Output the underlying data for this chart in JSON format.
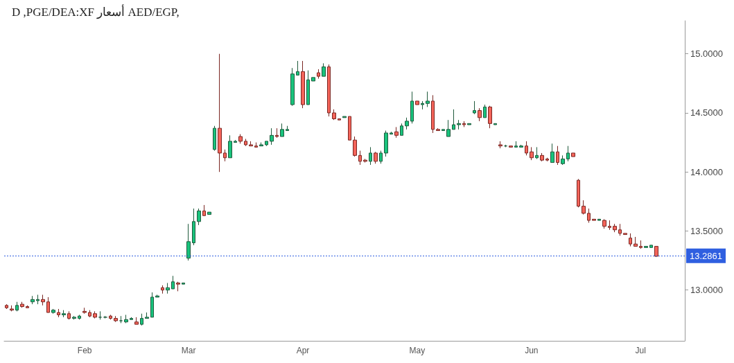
{
  "chart_data": {
    "type": "candlestick",
    "title": "D ,PGE/DEA:XF أسعار AED/EGP,",
    "categories": [
      null,
      null,
      null,
      null,
      null,
      null,
      null,
      null,
      null,
      null,
      null,
      null,
      null,
      null,
      null,
      "Feb",
      null,
      null,
      null,
      null,
      null,
      null,
      null,
      null,
      null,
      null,
      null,
      null,
      null,
      null,
      null,
      null,
      null,
      null,
      null,
      "Mar",
      null,
      null,
      null,
      null,
      null,
      null,
      null,
      null,
      null,
      null,
      null,
      null,
      null,
      null,
      null,
      null,
      null,
      null,
      null,
      null,
      null,
      "Apr",
      null,
      null,
      null,
      null,
      null,
      null,
      null,
      null,
      null,
      null,
      null,
      null,
      null,
      null,
      null,
      null,
      null,
      null,
      null,
      null,
      null,
      "May",
      null,
      null,
      null,
      null,
      null,
      null,
      null,
      null,
      null,
      null,
      null,
      null,
      null,
      null,
      null,
      null,
      null,
      null,
      null,
      null,
      null,
      "Jun",
      null,
      null,
      null,
      null,
      null,
      null,
      null,
      null,
      null,
      null,
      null,
      null,
      null,
      null,
      null,
      null,
      null,
      null,
      null,
      null,
      "Jul",
      null,
      null,
      null
    ],
    "ohlc": [
      [
        12.87,
        12.88,
        12.84,
        12.85
      ],
      [
        12.84,
        12.87,
        12.82,
        12.83
      ],
      [
        12.83,
        12.9,
        12.82,
        12.87
      ],
      [
        12.88,
        12.9,
        12.85,
        12.86
      ],
      [
        12.86,
        12.87,
        12.85,
        12.85
      ],
      [
        12.9,
        12.95,
        12.88,
        12.92
      ],
      [
        12.91,
        12.96,
        12.88,
        12.92
      ],
      [
        12.92,
        12.96,
        12.87,
        12.9
      ],
      [
        12.9,
        12.94,
        12.81,
        12.81
      ],
      [
        12.81,
        12.84,
        12.8,
        12.83
      ],
      [
        12.81,
        12.84,
        12.77,
        12.79
      ],
      [
        12.79,
        12.83,
        12.77,
        12.8
      ],
      [
        12.8,
        12.82,
        12.75,
        12.76
      ],
      [
        12.76,
        12.78,
        12.75,
        12.77
      ],
      [
        12.76,
        12.79,
        12.75,
        12.78
      ],
      [
        12.82,
        12.85,
        12.8,
        12.81
      ],
      [
        12.81,
        12.83,
        12.77,
        12.78
      ],
      [
        12.8,
        12.82,
        12.76,
        12.77
      ],
      [
        12.77,
        12.82,
        12.75,
        12.77
      ],
      [
        12.77,
        12.78,
        12.76,
        12.77
      ],
      [
        12.78,
        12.79,
        12.75,
        12.76
      ],
      [
        12.76,
        12.78,
        12.73,
        12.74
      ],
      [
        12.74,
        12.78,
        12.72,
        12.74
      ],
      [
        12.73,
        12.79,
        12.72,
        12.75
      ],
      [
        12.75,
        12.77,
        12.75,
        12.76
      ],
      [
        12.73,
        12.77,
        12.71,
        12.71
      ],
      [
        12.71,
        12.8,
        12.7,
        12.76
      ],
      [
        12.76,
        12.81,
        12.76,
        12.77
      ],
      [
        12.77,
        12.98,
        12.77,
        12.94
      ],
      [
        12.94,
        12.96,
        12.94,
        12.95
      ],
      [
        13.02,
        13.04,
        12.97,
        13.0
      ],
      [
        13.0,
        13.06,
        12.97,
        13.02
      ],
      [
        13.01,
        13.12,
        13.01,
        13.07
      ],
      [
        13.06,
        13.07,
        12.99,
        13.05
      ],
      [
        13.05,
        13.06,
        13.05,
        13.06
      ],
      [
        13.27,
        13.56,
        13.25,
        13.41
      ],
      [
        13.4,
        13.69,
        13.38,
        13.58
      ],
      [
        13.58,
        13.69,
        13.55,
        13.67
      ],
      [
        13.67,
        13.72,
        13.63,
        13.63
      ],
      [
        13.64,
        13.66,
        13.64,
        13.66
      ],
      [
        14.19,
        14.39,
        14.18,
        14.37
      ],
      [
        14.37,
        15.0,
        14.0,
        14.16
      ],
      [
        14.16,
        14.19,
        14.09,
        14.12
      ],
      [
        14.12,
        14.31,
        14.12,
        14.26
      ],
      [
        14.25,
        14.27,
        14.25,
        14.26
      ],
      [
        14.3,
        14.32,
        14.24,
        14.26
      ],
      [
        14.26,
        14.28,
        14.22,
        14.23
      ],
      [
        14.23,
        14.26,
        14.22,
        14.22
      ],
      [
        14.22,
        14.25,
        14.21,
        14.21
      ],
      [
        14.22,
        14.25,
        14.22,
        14.23
      ],
      [
        14.23,
        14.26,
        14.22,
        14.26
      ],
      [
        14.26,
        14.37,
        14.23,
        14.31
      ],
      [
        14.31,
        14.37,
        14.29,
        14.3
      ],
      [
        14.3,
        14.41,
        14.3,
        14.36
      ],
      [
        14.35,
        14.39,
        14.35,
        14.36
      ],
      [
        14.57,
        14.88,
        14.56,
        14.83
      ],
      [
        14.82,
        14.94,
        14.82,
        14.85
      ],
      [
        14.85,
        14.94,
        14.54,
        14.57
      ],
      [
        14.57,
        14.86,
        14.57,
        14.78
      ],
      [
        14.77,
        14.8,
        14.77,
        14.8
      ],
      [
        14.84,
        14.87,
        14.79,
        14.81
      ],
      [
        14.81,
        14.92,
        14.81,
        14.89
      ],
      [
        14.89,
        14.91,
        14.47,
        14.5
      ],
      [
        14.5,
        14.53,
        14.44,
        14.45
      ],
      [
        14.45,
        14.45,
        14.44,
        14.44
      ],
      [
        14.46,
        14.47,
        14.46,
        14.47
      ],
      [
        14.47,
        14.47,
        14.27,
        14.27
      ],
      [
        14.27,
        14.3,
        14.13,
        14.14
      ],
      [
        14.14,
        14.18,
        14.06,
        14.09
      ],
      [
        14.1,
        14.11,
        14.08,
        14.09
      ],
      [
        14.09,
        14.21,
        14.06,
        14.16
      ],
      [
        14.16,
        14.17,
        14.07,
        14.09
      ],
      [
        14.09,
        14.18,
        14.07,
        14.16
      ],
      [
        14.16,
        14.35,
        14.13,
        14.33
      ],
      [
        14.32,
        14.34,
        14.32,
        14.33
      ],
      [
        14.34,
        14.38,
        14.29,
        14.31
      ],
      [
        14.31,
        14.41,
        14.31,
        14.39
      ],
      [
        14.39,
        14.46,
        14.36,
        14.43
      ],
      [
        14.43,
        14.68,
        14.41,
        14.6
      ],
      [
        14.6,
        14.6,
        14.57,
        14.57
      ],
      [
        14.57,
        14.6,
        14.53,
        14.58
      ],
      [
        14.58,
        14.68,
        14.55,
        14.6
      ],
      [
        14.6,
        14.65,
        14.33,
        14.36
      ],
      [
        14.36,
        14.37,
        14.35,
        14.35
      ],
      [
        14.35,
        14.36,
        14.35,
        14.36
      ],
      [
        14.3,
        14.44,
        14.3,
        14.36
      ],
      [
        14.36,
        14.53,
        14.36,
        14.4
      ],
      [
        14.4,
        14.44,
        14.36,
        14.41
      ],
      [
        14.41,
        14.43,
        14.38,
        14.4
      ],
      [
        14.4,
        14.41,
        14.4,
        14.41
      ],
      [
        14.5,
        14.6,
        14.49,
        14.52
      ],
      [
        14.52,
        14.54,
        14.43,
        14.46
      ],
      [
        14.46,
        14.57,
        14.46,
        14.55
      ],
      [
        14.55,
        14.56,
        14.37,
        14.41
      ],
      [
        14.4,
        14.41,
        14.4,
        14.41
      ],
      [
        14.23,
        14.26,
        14.2,
        14.22
      ],
      [
        14.22,
        14.23,
        14.21,
        14.22
      ],
      [
        14.22,
        14.22,
        14.21,
        14.21
      ],
      [
        14.21,
        14.26,
        14.21,
        14.22
      ],
      [
        14.21,
        14.23,
        14.21,
        14.22
      ],
      [
        14.22,
        14.26,
        14.14,
        14.16
      ],
      [
        14.17,
        14.21,
        14.1,
        14.12
      ],
      [
        14.12,
        14.21,
        14.11,
        14.14
      ],
      [
        14.14,
        14.16,
        14.09,
        14.1
      ],
      [
        14.11,
        14.12,
        14.09,
        14.1
      ],
      [
        14.08,
        14.24,
        14.08,
        14.17
      ],
      [
        14.17,
        14.22,
        14.06,
        14.08
      ],
      [
        14.07,
        14.14,
        14.06,
        14.11
      ],
      [
        14.11,
        14.22,
        14.09,
        14.16
      ],
      [
        14.16,
        14.16,
        14.13,
        14.13
      ],
      [
        13.93,
        13.94,
        13.7,
        13.71
      ],
      [
        13.71,
        13.76,
        13.64,
        13.65
      ],
      [
        13.65,
        13.69,
        13.57,
        13.59
      ],
      [
        13.6,
        13.6,
        13.59,
        13.59
      ],
      [
        13.59,
        13.6,
        13.59,
        13.6
      ],
      [
        13.59,
        13.6,
        13.52,
        13.54
      ],
      [
        13.54,
        13.59,
        13.51,
        13.53
      ],
      [
        13.54,
        13.56,
        13.49,
        13.51
      ],
      [
        13.51,
        13.56,
        13.46,
        13.48
      ],
      [
        13.48,
        13.48,
        13.47,
        13.47
      ],
      [
        13.44,
        13.48,
        13.37,
        13.39
      ],
      [
        13.39,
        13.45,
        13.37,
        13.37
      ],
      [
        13.37,
        13.42,
        13.35,
        13.36
      ],
      [
        13.36,
        13.37,
        13.36,
        13.37
      ],
      [
        13.36,
        13.38,
        13.36,
        13.38
      ],
      [
        13.37,
        13.37,
        13.28,
        13.2861
      ]
    ],
    "ylim": [
      12.57,
      15.28
    ],
    "yticks": [
      {
        "value": 13,
        "label": "13.0000"
      },
      {
        "value": 13.5,
        "label": "13.5000"
      },
      {
        "value": 14,
        "label": "14.0000"
      },
      {
        "value": 14.5,
        "label": "14.5000"
      },
      {
        "value": 15,
        "label": "15.0000"
      }
    ],
    "ref_lines": [
      {
        "axis": "y",
        "value": 13.2861,
        "label": "13.2861",
        "color": "#2f5fe0",
        "line_style": "dotted"
      }
    ]
  }
}
